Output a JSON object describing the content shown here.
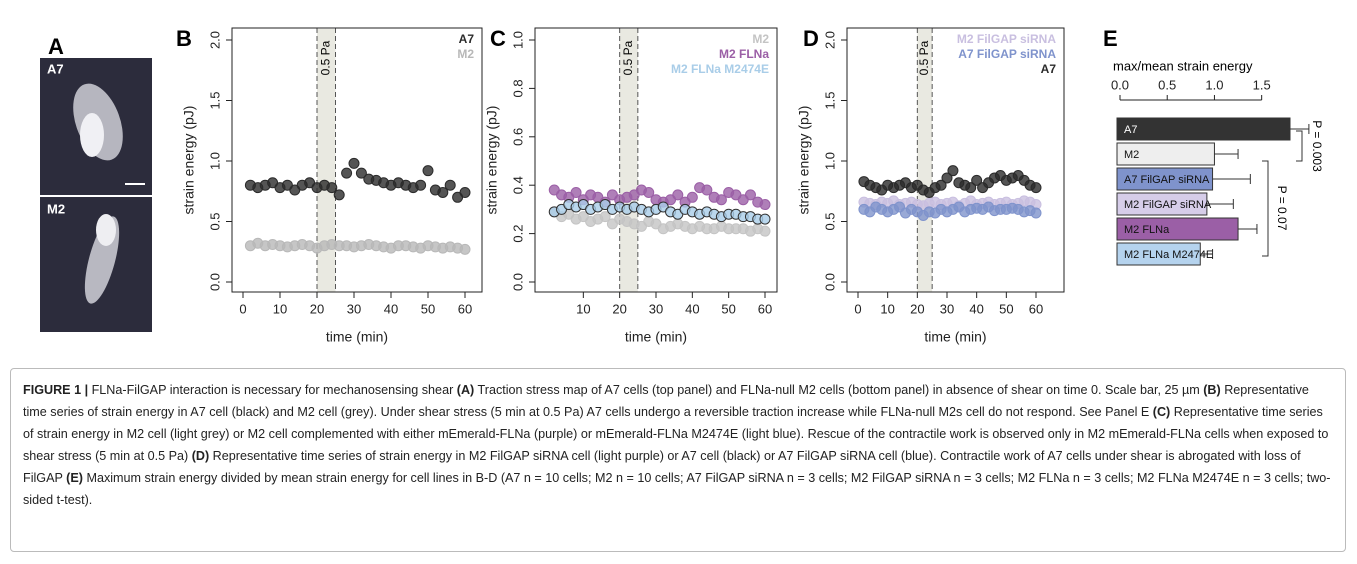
{
  "figure": {
    "panels": [
      "A",
      "B",
      "C",
      "D",
      "E"
    ],
    "image_labels": [
      "A7",
      "M2"
    ],
    "caption": [
      "FIGURE 1 |",
      " FLNa-FilGAP interaction is necessary for mechanosensing shear ",
      "(A)",
      " Traction stress map of A7 cells (top panel) and FLNa-null M2 cells (bottom panel) in absence of shear on time 0. Scale bar, 25 µm ",
      "(B)",
      " Representative time series of strain energy in A7 cell (black) and M2 cell (grey). Under shear stress (5 min at 0.5 Pa) A7 cells undergo a reversible traction increase while FLNa-null M2s cell do not respond. See Panel E ",
      "(C)",
      " Representative time series of strain energy in M2 cell (light grey) or M2 cell complemented with either mEmerald-FLNa (purple) or mEmerald-FLNa M2474E (light blue). Rescue of the contractile work is observed only in M2 mEmerald-FLNa cells when exposed to shear stress (5 min at 0.5 Pa) ",
      "(D)",
      " Representative time series of strain energy in M2 FilGAP siRNA cell (light purple) or A7 cell (black) or A7 FilGAP siRNA cell (blue). Contractile work of A7 cells under shear is abrogated with loss of FilGAP ",
      "(E)",
      " Maximum strain energy divided by mean strain energy for cell lines in B-D (A7 n = 10 cells; M2 n = 10 cells; A7 FilGAP siRNA n = 3 cells; M2 FilGAP siRNA n = 3 cells; M2 FLNa n = 3 cells; M2 FLNa M2474E n = 3 cells; two-sided t-test)."
    ]
  },
  "chart_data": [
    {
      "type": "scatter",
      "x_label": "time (min)",
      "y_label": "strain energy (pJ)",
      "x": [
        2,
        4,
        6,
        8,
        10,
        12,
        14,
        16,
        18,
        20,
        22,
        24,
        26,
        28,
        30,
        32,
        34,
        36,
        38,
        40,
        42,
        44,
        46,
        48,
        50,
        52,
        54,
        56,
        58,
        60
      ],
      "xlim": [
        0,
        60
      ],
      "xticks": [
        0,
        10,
        20,
        30,
        40,
        50,
        60
      ],
      "ylim": [
        0,
        2
      ],
      "yticks": [
        {
          "value": 0,
          "label": "0.0"
        },
        {
          "value": 0.5,
          "label": "0.5"
        },
        {
          "value": 1,
          "label": "1.0"
        },
        {
          "value": 1.5,
          "label": "1.5"
        },
        {
          "value": 2,
          "label": "2.0"
        }
      ],
      "shade": {
        "xlim": [
          20,
          25
        ],
        "label": "0.5 Pa"
      },
      "legend": "top-right",
      "series": [
        {
          "name": "A7",
          "color": "#2b2b2b",
          "values": [
            0.8,
            0.78,
            0.8,
            0.82,
            0.78,
            0.8,
            0.76,
            0.8,
            0.82,
            0.78,
            0.8,
            0.78,
            0.72,
            0.9,
            0.98,
            0.9,
            0.85,
            0.84,
            0.82,
            0.8,
            0.82,
            0.8,
            0.78,
            0.8,
            0.92,
            0.76,
            0.74,
            0.8,
            0.7,
            0.74
          ]
        },
        {
          "name": "M2",
          "color": "#b8b8b8",
          "values": [
            0.3,
            0.32,
            0.3,
            0.31,
            0.3,
            0.29,
            0.3,
            0.31,
            0.3,
            0.28,
            0.3,
            0.31,
            0.3,
            0.3,
            0.29,
            0.3,
            0.31,
            0.3,
            0.29,
            0.28,
            0.3,
            0.3,
            0.29,
            0.28,
            0.3,
            0.29,
            0.28,
            0.29,
            0.28,
            0.27
          ]
        }
      ]
    },
    {
      "type": "scatter",
      "x_label": "time (min)",
      "y_label": "strain energy (pJ)",
      "x": [
        2,
        4,
        6,
        8,
        10,
        12,
        14,
        16,
        18,
        20,
        22,
        24,
        26,
        28,
        30,
        32,
        34,
        36,
        38,
        40,
        42,
        44,
        46,
        48,
        50,
        52,
        54,
        56,
        58,
        60
      ],
      "xlim": [
        0,
        60
      ],
      "xticks": [
        10,
        20,
        30,
        40,
        50,
        60
      ],
      "ylim": [
        0,
        1
      ],
      "yticks": [
        {
          "value": 0,
          "label": "0.0"
        },
        {
          "value": 0.2,
          "label": "0.2"
        },
        {
          "value": 0.4,
          "label": "0.4"
        },
        {
          "value": 0.6,
          "label": "0.6"
        },
        {
          "value": 0.8,
          "label": "0.8"
        },
        {
          "value": 1,
          "label": "1.0"
        }
      ],
      "shade": {
        "xlim": [
          20,
          25
        ],
        "label": "0.5 Pa"
      },
      "legend": "top-right",
      "series": [
        {
          "name": "M2",
          "color": "#c4c4c4",
          "values": [
            0.29,
            0.27,
            0.28,
            0.26,
            0.27,
            0.25,
            0.26,
            0.27,
            0.24,
            0.26,
            0.25,
            0.24,
            0.23,
            0.25,
            0.24,
            0.22,
            0.23,
            0.24,
            0.23,
            0.22,
            0.23,
            0.22,
            0.22,
            0.23,
            0.22,
            0.22,
            0.22,
            0.21,
            0.22,
            0.21
          ]
        },
        {
          "name": "M2 FLNa",
          "color": "#9b5fa6",
          "values": [
            0.38,
            0.36,
            0.35,
            0.37,
            0.34,
            0.36,
            0.35,
            0.33,
            0.36,
            0.34,
            0.35,
            0.36,
            0.38,
            0.37,
            0.34,
            0.33,
            0.34,
            0.36,
            0.33,
            0.35,
            0.39,
            0.38,
            0.35,
            0.34,
            0.37,
            0.36,
            0.34,
            0.36,
            0.33,
            0.32
          ]
        },
        {
          "name": "M2 FLNa M2474E",
          "color": "#a9cde8",
          "values": [
            0.29,
            0.3,
            0.32,
            0.31,
            0.32,
            0.3,
            0.31,
            0.32,
            0.3,
            0.31,
            0.3,
            0.31,
            0.3,
            0.29,
            0.3,
            0.31,
            0.29,
            0.28,
            0.3,
            0.29,
            0.28,
            0.29,
            0.28,
            0.27,
            0.28,
            0.28,
            0.27,
            0.27,
            0.26,
            0.26
          ]
        }
      ]
    },
    {
      "type": "scatter",
      "x_label": "time (min)",
      "y_label": "strain energy (pJ)",
      "x": [
        2,
        4,
        6,
        8,
        10,
        12,
        14,
        16,
        18,
        20,
        22,
        24,
        26,
        28,
        30,
        32,
        34,
        36,
        38,
        40,
        42,
        44,
        46,
        48,
        50,
        52,
        54,
        56,
        58,
        60
      ],
      "xlim": [
        0,
        60
      ],
      "xticks": [
        0,
        10,
        20,
        30,
        40,
        50,
        60
      ],
      "ylim": [
        0,
        2
      ],
      "yticks": [
        {
          "value": 0,
          "label": "0.0"
        },
        {
          "value": 0.5,
          "label": "0.5"
        },
        {
          "value": 1,
          "label": "1.0"
        },
        {
          "value": 1.5,
          "label": "1.5"
        },
        {
          "value": 2,
          "label": "2.0"
        }
      ],
      "shade": {
        "xlim": [
          20,
          25
        ],
        "label": "0.5 Pa"
      },
      "legend": "top-right",
      "series": [
        {
          "name": "M2 FilGAP siRNA",
          "color": "#c9bfe0",
          "values": [
            0.66,
            0.65,
            0.64,
            0.66,
            0.65,
            0.67,
            0.64,
            0.65,
            0.66,
            0.64,
            0.63,
            0.65,
            0.66,
            0.64,
            0.65,
            0.66,
            0.63,
            0.65,
            0.67,
            0.64,
            0.65,
            0.66,
            0.64,
            0.65,
            0.66,
            0.64,
            0.65,
            0.67,
            0.66,
            0.64
          ]
        },
        {
          "name": "A7 FilGAP siRNA",
          "color": "#7f93cc",
          "values": [
            0.6,
            0.58,
            0.62,
            0.6,
            0.58,
            0.6,
            0.62,
            0.57,
            0.6,
            0.58,
            0.55,
            0.58,
            0.57,
            0.6,
            0.58,
            0.6,
            0.62,
            0.58,
            0.6,
            0.61,
            0.6,
            0.62,
            0.59,
            0.6,
            0.6,
            0.61,
            0.6,
            0.58,
            0.59,
            0.57
          ]
        },
        {
          "name": "A7",
          "color": "#2b2b2b",
          "values": [
            0.83,
            0.8,
            0.78,
            0.76,
            0.8,
            0.78,
            0.8,
            0.82,
            0.78,
            0.8,
            0.76,
            0.74,
            0.78,
            0.8,
            0.86,
            0.92,
            0.82,
            0.8,
            0.78,
            0.84,
            0.78,
            0.82,
            0.86,
            0.88,
            0.84,
            0.86,
            0.88,
            0.84,
            0.8,
            0.78
          ]
        }
      ]
    },
    {
      "type": "hbar",
      "title": "max/mean strain energy",
      "categories": [
        "A7",
        "M2",
        "A7 FilGAP siRNA",
        "M2 FilGAP siRNA",
        "M2 FLNa",
        "M2 FLNa M2474E"
      ],
      "values": [
        1.8,
        1.0,
        0.98,
        0.92,
        1.25,
        0.85
      ],
      "errors": [
        0.2,
        0.25,
        0.4,
        0.28,
        0.2,
        0.13
      ],
      "colors": [
        "#333333",
        "#eeeeee",
        "#7f93cc",
        "#d6cde9",
        "#9b5fa6",
        "#b5d3ee"
      ],
      "xlim": [
        0,
        1.8
      ],
      "xticks": [
        {
          "value": 0,
          "label": "0.0"
        },
        {
          "value": 0.5,
          "label": "0.5"
        },
        {
          "value": 1,
          "label": "1.0"
        },
        {
          "value": 1.5,
          "label": "1.5"
        }
      ],
      "annotations": [
        "P = 0.003",
        "P = 0.07"
      ]
    }
  ]
}
